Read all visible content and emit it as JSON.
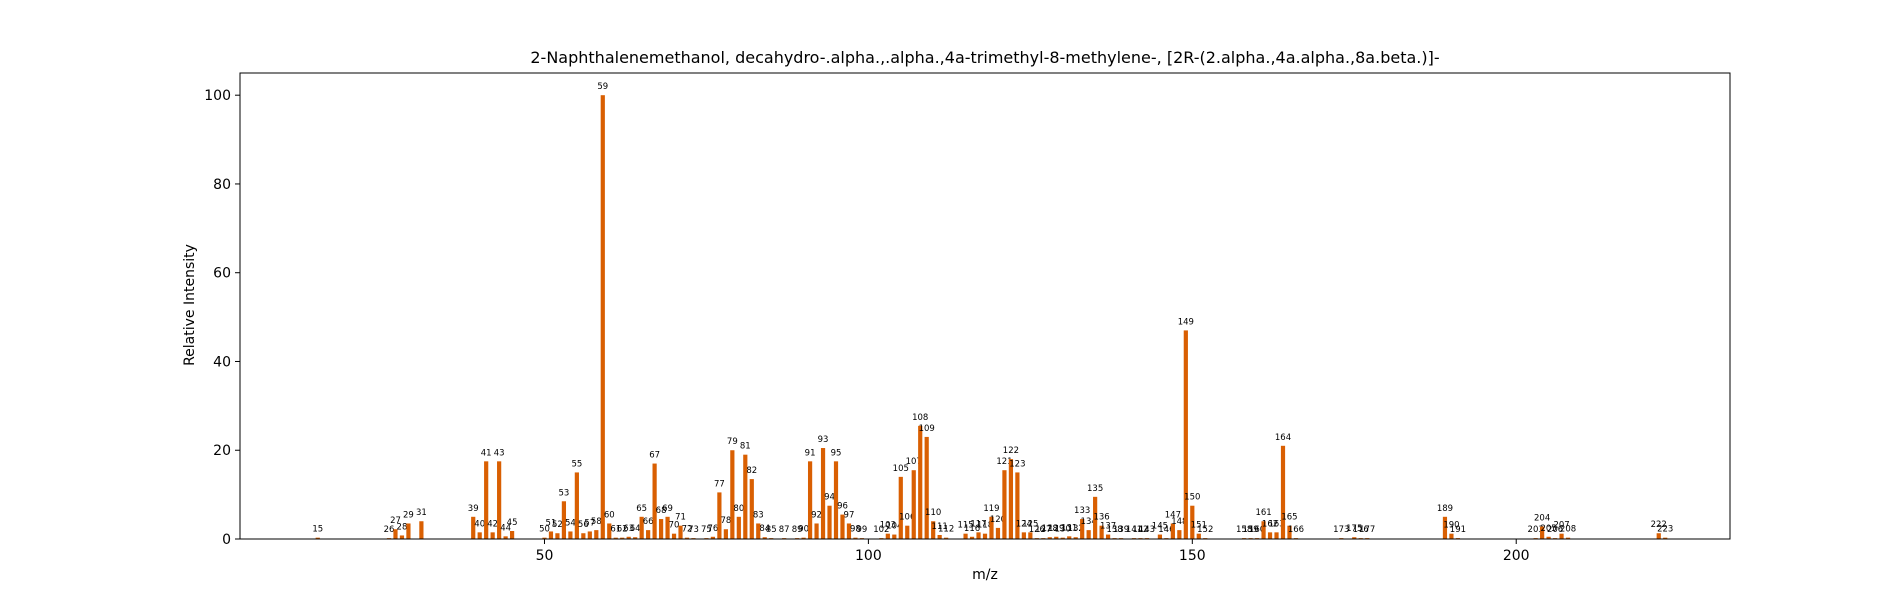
{
  "chart_data": {
    "type": "bar",
    "title": "2-Naphthalenemethanol, decahydro-.alpha.,.alpha.,4a-trimethyl-8-methylene-, [2R-(2.alpha.,4a.alpha.,8a.beta.)]-",
    "xlabel": "m/z",
    "ylabel": "Relative Intensity",
    "xlim": [
      3,
      233
    ],
    "ylim": [
      0,
      105
    ],
    "xticks": [
      50,
      100,
      150,
      200
    ],
    "yticks": [
      0,
      20,
      40,
      60,
      80,
      100
    ],
    "bar_color": "#d95f02",
    "grid": false,
    "x": [
      15,
      26,
      27,
      28,
      29,
      31,
      39,
      40,
      41,
      42,
      43,
      44,
      45,
      50,
      51,
      52,
      53,
      54,
      55,
      56,
      57,
      58,
      59,
      60,
      61,
      62,
      63,
      64,
      65,
      66,
      67,
      68,
      69,
      70,
      71,
      72,
      73,
      75,
      76,
      77,
      78,
      79,
      80,
      81,
      82,
      83,
      84,
      85,
      87,
      89,
      90,
      91,
      92,
      93,
      94,
      95,
      96,
      97,
      98,
      99,
      102,
      103,
      104,
      105,
      106,
      107,
      108,
      109,
      110,
      111,
      112,
      115,
      116,
      117,
      118,
      119,
      120,
      121,
      122,
      123,
      124,
      125,
      126,
      127,
      128,
      129,
      130,
      131,
      132,
      133,
      134,
      135,
      136,
      137,
      138,
      139,
      141,
      142,
      143,
      145,
      146,
      147,
      148,
      149,
      150,
      151,
      152,
      158,
      159,
      160,
      161,
      162,
      163,
      164,
      165,
      166,
      173,
      175,
      176,
      177,
      189,
      190,
      191,
      203,
      204,
      205,
      206,
      207,
      208,
      222,
      223
    ],
    "values": [
      0.3,
      0.2,
      2.2,
      0.8,
      3.5,
      4.0,
      5.0,
      1.5,
      17.5,
      1.5,
      17.5,
      0.6,
      1.8,
      0.3,
      1.7,
      1.3,
      8.5,
      1.7,
      15.0,
      1.3,
      1.7,
      2.0,
      100,
      3.5,
      0.3,
      0.3,
      0.5,
      0.4,
      5.0,
      2.0,
      17.0,
      4.5,
      5.0,
      1.2,
      3.0,
      0.3,
      0.2,
      0.2,
      0.5,
      10.5,
      2.2,
      20.0,
      5.0,
      19.0,
      13.5,
      3.5,
      0.4,
      0.2,
      0.2,
      0.2,
      0.3,
      17.5,
      3.5,
      20.5,
      7.5,
      17.5,
      5.5,
      3.5,
      0.3,
      0.2,
      0.2,
      1.2,
      1.0,
      14.0,
      3.0,
      15.5,
      25.5,
      23.0,
      4.0,
      0.9,
      0.3,
      1.2,
      0.5,
      1.5,
      1.2,
      5.0,
      2.5,
      15.5,
      18.0,
      15.0,
      1.5,
      1.5,
      0.2,
      0.2,
      0.4,
      0.5,
      0.3,
      0.6,
      0.4,
      4.5,
      2.0,
      9.5,
      3.0,
      1.0,
      0.2,
      0.2,
      0.2,
      0.2,
      0.2,
      1.0,
      0.2,
      3.5,
      2.0,
      47.0,
      7.5,
      1.2,
      0.2,
      0.2,
      0.2,
      0.2,
      4.0,
      1.5,
      1.5,
      21.0,
      3.0,
      0.2,
      0.2,
      0.4,
      0.2,
      0.2,
      5.0,
      1.2,
      0.2,
      0.2,
      2.8,
      0.5,
      0.2,
      1.2,
      0.3,
      1.3,
      0.3
    ]
  }
}
